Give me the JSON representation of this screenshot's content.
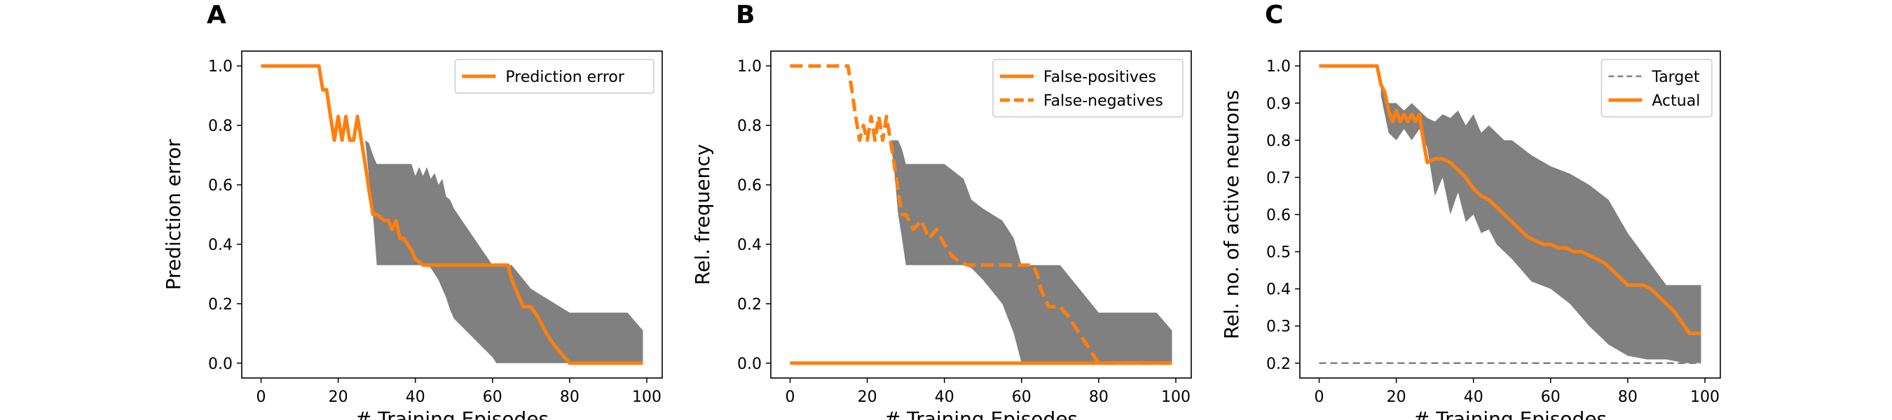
{
  "chart_data": [
    {
      "panel": "A",
      "type": "line",
      "xlabel": "# Training Episodes",
      "ylabel": "Prediction error",
      "xlim": [
        -5,
        104
      ],
      "ylim": [
        -0.05,
        1.05
      ],
      "xticks": [
        0,
        20,
        40,
        60,
        80,
        100
      ],
      "yticks": [
        0.0,
        0.2,
        0.4,
        0.6,
        0.8,
        1.0
      ],
      "ytick_format": 1,
      "legend": {
        "placement": "upper-right"
      },
      "band": {
        "color": "#808080",
        "x": [
          27,
          28,
          29,
          30,
          35,
          39,
          40,
          41,
          42,
          43,
          44,
          45,
          46,
          47,
          48,
          49,
          50,
          60,
          61,
          62,
          63,
          65,
          70,
          80,
          90,
          95,
          99
        ],
        "upper": [
          0.75,
          0.74,
          0.7,
          0.67,
          0.67,
          0.67,
          0.63,
          0.66,
          0.63,
          0.66,
          0.62,
          0.64,
          0.6,
          0.62,
          0.56,
          0.55,
          0.52,
          0.33,
          0.33,
          0.33,
          0.33,
          0.33,
          0.25,
          0.17,
          0.17,
          0.17,
          0.11
        ],
        "lower": [
          0.75,
          0.62,
          0.5,
          0.33,
          0.33,
          0.33,
          0.33,
          0.33,
          0.33,
          0.33,
          0.32,
          0.3,
          0.28,
          0.25,
          0.22,
          0.18,
          0.15,
          0.02,
          0.0,
          0.0,
          0.0,
          0.0,
          0.0,
          0.0,
          0.0,
          0.0,
          0.0
        ]
      },
      "series": [
        {
          "name": "Prediction error",
          "style": "solid",
          "color": "#ff7f0e",
          "x": [
            0,
            15,
            16,
            17,
            18,
            19,
            20,
            21,
            22,
            23,
            24,
            25,
            26,
            27,
            28,
            29,
            30,
            32,
            33,
            34,
            35,
            36,
            37,
            38,
            39,
            40,
            41,
            42,
            44,
            64,
            65,
            66,
            67,
            68,
            69,
            70,
            72,
            74,
            76,
            78,
            80,
            90,
            99
          ],
          "y": [
            1.0,
            1.0,
            0.92,
            0.92,
            0.83,
            0.75,
            0.83,
            0.75,
            0.83,
            0.75,
            0.75,
            0.83,
            0.75,
            0.67,
            0.58,
            0.5,
            0.5,
            0.48,
            0.48,
            0.45,
            0.48,
            0.42,
            0.42,
            0.4,
            0.38,
            0.35,
            0.34,
            0.33,
            0.33,
            0.33,
            0.28,
            0.25,
            0.22,
            0.19,
            0.19,
            0.19,
            0.15,
            0.1,
            0.06,
            0.03,
            0.0,
            0.0,
            0.0
          ]
        }
      ]
    },
    {
      "panel": "B",
      "type": "line",
      "xlabel": "# Training Episodes",
      "ylabel": "Rel. frequency",
      "xlim": [
        -5,
        104
      ],
      "ylim": [
        -0.05,
        1.05
      ],
      "xticks": [
        0,
        20,
        40,
        60,
        80,
        100
      ],
      "yticks": [
        0.0,
        0.2,
        0.4,
        0.6,
        0.8,
        1.0
      ],
      "ytick_format": 1,
      "legend": {
        "placement": "upper-right"
      },
      "band": {
        "color": "#808080",
        "x": [
          26,
          27,
          28,
          29,
          30,
          35,
          40,
          45,
          47,
          50,
          55,
          58,
          60,
          62,
          65,
          70,
          75,
          80,
          90,
          95,
          99
        ],
        "upper": [
          0.75,
          0.75,
          0.75,
          0.72,
          0.67,
          0.67,
          0.67,
          0.62,
          0.55,
          0.52,
          0.48,
          0.42,
          0.33,
          0.33,
          0.33,
          0.33,
          0.25,
          0.17,
          0.17,
          0.17,
          0.11
        ],
        "lower": [
          0.75,
          0.65,
          0.5,
          0.42,
          0.33,
          0.33,
          0.33,
          0.33,
          0.32,
          0.28,
          0.2,
          0.1,
          0.0,
          0.0,
          0.0,
          0.0,
          0.0,
          0.0,
          0.0,
          0.0,
          0.0
        ]
      },
      "series": [
        {
          "name": "False-positives",
          "style": "solid",
          "color": "#ff7f0e",
          "x": [
            0,
            99
          ],
          "y": [
            0.0,
            0.0
          ]
        },
        {
          "name": "False-negatives",
          "style": "dashed",
          "color": "#ff7f0e",
          "x": [
            0,
            15,
            16,
            17,
            18,
            19,
            20,
            21,
            22,
            23,
            24,
            25,
            26,
            27,
            28,
            29,
            30,
            32,
            34,
            36,
            38,
            40,
            42,
            44,
            46,
            50,
            55,
            60,
            63,
            64,
            65,
            66,
            67,
            70,
            72,
            74,
            76,
            78,
            80,
            90,
            99
          ],
          "y": [
            1.0,
            1.0,
            0.92,
            0.83,
            0.75,
            0.8,
            0.75,
            0.83,
            0.75,
            0.83,
            0.75,
            0.83,
            0.75,
            0.67,
            0.58,
            0.5,
            0.5,
            0.45,
            0.48,
            0.42,
            0.45,
            0.4,
            0.36,
            0.34,
            0.33,
            0.33,
            0.33,
            0.33,
            0.33,
            0.3,
            0.25,
            0.22,
            0.19,
            0.19,
            0.16,
            0.12,
            0.08,
            0.04,
            0.0,
            0.0,
            0.0
          ]
        }
      ]
    },
    {
      "panel": "C",
      "type": "line",
      "xlabel": "# Training Episodes",
      "ylabel": "Rel. no. of active neurons",
      "xlim": [
        -5,
        104
      ],
      "ylim": [
        0.16,
        1.04
      ],
      "xticks": [
        0,
        20,
        40,
        60,
        80,
        100
      ],
      "yticks": [
        0.2,
        0.3,
        0.4,
        0.5,
        0.6,
        0.7,
        0.8,
        0.9,
        1.0
      ],
      "ytick_format": 1,
      "legend": {
        "placement": "upper-right"
      },
      "band": {
        "color": "#808080",
        "x": [
          16,
          18,
          20,
          22,
          24,
          26,
          28,
          30,
          32,
          34,
          36,
          38,
          40,
          42,
          44,
          46,
          48,
          50,
          55,
          60,
          65,
          70,
          75,
          80,
          85,
          90,
          95,
          99
        ],
        "upper": [
          0.95,
          0.9,
          0.9,
          0.88,
          0.9,
          0.88,
          0.86,
          0.85,
          0.87,
          0.86,
          0.88,
          0.84,
          0.87,
          0.82,
          0.84,
          0.82,
          0.8,
          0.8,
          0.76,
          0.73,
          0.71,
          0.68,
          0.64,
          0.55,
          0.48,
          0.41,
          0.41,
          0.41
        ],
        "lower": [
          0.92,
          0.82,
          0.8,
          0.83,
          0.8,
          0.83,
          0.78,
          0.65,
          0.7,
          0.6,
          0.66,
          0.58,
          0.6,
          0.55,
          0.56,
          0.52,
          0.5,
          0.48,
          0.42,
          0.4,
          0.36,
          0.3,
          0.25,
          0.22,
          0.21,
          0.21,
          0.2,
          0.2
        ]
      },
      "series": [
        {
          "name": "Target",
          "style": "dashed",
          "color": "#808080",
          "x": [
            0,
            99
          ],
          "y": [
            0.2,
            0.2
          ]
        },
        {
          "name": "Actual",
          "style": "solid",
          "color": "#ff7f0e",
          "x": [
            0,
            15,
            16,
            17,
            18,
            19,
            20,
            21,
            22,
            23,
            24,
            25,
            26,
            27,
            28,
            30,
            32,
            34,
            36,
            38,
            40,
            42,
            44,
            46,
            48,
            50,
            52,
            54,
            56,
            58,
            60,
            62,
            64,
            66,
            68,
            70,
            72,
            74,
            76,
            78,
            80,
            82,
            84,
            86,
            88,
            90,
            92,
            94,
            96,
            99
          ],
          "y": [
            1.0,
            1.0,
            0.95,
            0.93,
            0.88,
            0.85,
            0.88,
            0.85,
            0.87,
            0.85,
            0.87,
            0.85,
            0.87,
            0.8,
            0.74,
            0.75,
            0.75,
            0.74,
            0.72,
            0.7,
            0.67,
            0.65,
            0.64,
            0.62,
            0.6,
            0.58,
            0.56,
            0.54,
            0.53,
            0.52,
            0.52,
            0.51,
            0.51,
            0.5,
            0.5,
            0.49,
            0.48,
            0.47,
            0.45,
            0.43,
            0.41,
            0.41,
            0.41,
            0.4,
            0.38,
            0.36,
            0.34,
            0.31,
            0.28,
            0.28
          ]
        }
      ]
    }
  ]
}
